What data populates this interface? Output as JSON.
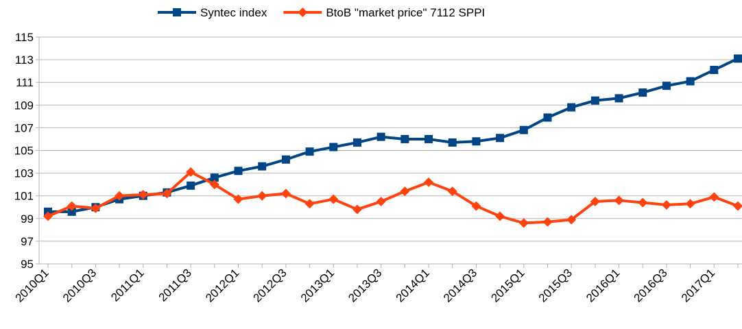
{
  "chart_data": {
    "type": "line",
    "categories": [
      "2010Q1",
      null,
      "2010Q3",
      null,
      "2011Q1",
      null,
      "2011Q3",
      null,
      "2012Q1",
      null,
      "2012Q3",
      null,
      "2013Q1",
      null,
      "2013Q3",
      null,
      "2014Q1",
      null,
      "2014Q3",
      null,
      "2015Q1",
      null,
      "2015Q3",
      null,
      "2016Q1",
      null,
      "2016Q3",
      null,
      "2017Q1",
      null
    ],
    "series": [
      {
        "name": "Syntec index",
        "color": "#004586",
        "marker": "square",
        "values": [
          99.6,
          99.6,
          100.0,
          100.7,
          101.0,
          101.3,
          101.9,
          102.6,
          103.2,
          103.6,
          104.2,
          104.9,
          105.3,
          105.7,
          106.2,
          106.0,
          106.0,
          105.7,
          105.8,
          106.1,
          106.8,
          107.9,
          108.8,
          109.4,
          109.6,
          110.1,
          110.7,
          111.1,
          112.1,
          113.1
        ]
      },
      {
        "name": "BtoB \"market price\" 7112 SPPI",
        "color": "#ff420e",
        "marker": "diamond",
        "values": [
          99.2,
          100.1,
          99.9,
          101.0,
          101.1,
          101.2,
          103.1,
          102.0,
          100.7,
          101.0,
          101.2,
          100.3,
          100.7,
          99.8,
          100.5,
          101.4,
          102.2,
          101.4,
          100.1,
          99.2,
          98.6,
          98.7,
          98.9,
          100.5,
          100.6,
          100.4,
          100.2,
          100.3,
          100.9,
          100.1
        ]
      }
    ],
    "ylim": [
      95,
      115
    ],
    "yticks": [
      95,
      97,
      99,
      101,
      103,
      105,
      107,
      109,
      111,
      113,
      115
    ],
    "grid": true,
    "legend": "top"
  }
}
